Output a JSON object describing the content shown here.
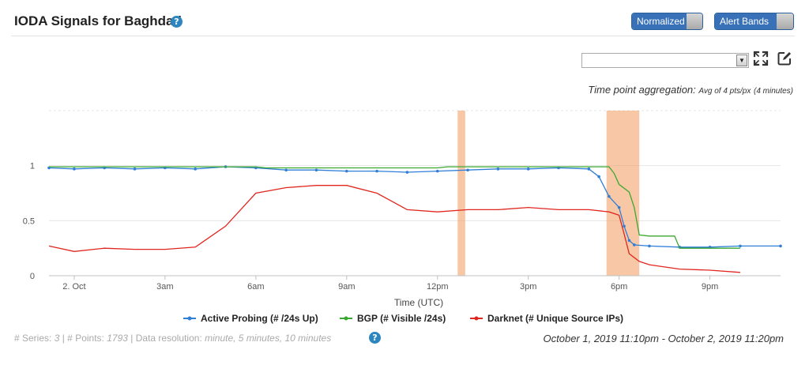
{
  "header": {
    "title": "IODA Signals for Baghdad",
    "help_glyph": "?",
    "toggles": {
      "normalized": "Normalized",
      "alert_bands": "Alert Bands"
    }
  },
  "controls": {
    "select_value": "",
    "select_arrow": "▼",
    "aggregation_label": "Time point aggregation:",
    "aggregation_value": "Avg of 4 pts/px",
    "aggregation_detail": "(4 minutes)"
  },
  "footer": {
    "series_label": "# Series:",
    "series_value": "3",
    "points_label": "| # Points:",
    "points_value": "1793",
    "resolution_label": "| Data resolution:",
    "resolution_value": "minute, 5 minutes, 10 minutes",
    "date_range": "October 1, 2019 11:10pm - October 2, 2019 11:20pm"
  },
  "chart_data": {
    "type": "line",
    "xlabel": "Time (UTC)",
    "ylabel": "",
    "x_range": [
      "2019-10-01T23:10",
      "2019-10-02T23:20"
    ],
    "ylim": [
      0,
      1.5
    ],
    "y_ticks": [
      {
        "value": 0,
        "label": "0"
      },
      {
        "value": 0.5,
        "label": "0.5"
      },
      {
        "value": 1,
        "label": "1"
      }
    ],
    "x_ticks": [
      {
        "time": "2019-10-02T00:00",
        "label": "2. Oct"
      },
      {
        "time": "2019-10-02T03:00",
        "label": "3am"
      },
      {
        "time": "2019-10-02T06:00",
        "label": "6am"
      },
      {
        "time": "2019-10-02T09:00",
        "label": "9am"
      },
      {
        "time": "2019-10-02T12:00",
        "label": "12pm"
      },
      {
        "time": "2019-10-02T15:00",
        "label": "3pm"
      },
      {
        "time": "2019-10-02T18:00",
        "label": "6pm"
      },
      {
        "time": "2019-10-02T21:00",
        "label": "9pm"
      }
    ],
    "grid": true,
    "legend_position": "bottom",
    "alert_bands": [
      {
        "start": "2019-10-02T12:40",
        "end": "2019-10-02T12:55"
      },
      {
        "start": "2019-10-02T17:35",
        "end": "2019-10-02T18:40"
      }
    ],
    "series": [
      {
        "name": "Active Probing (# /24s Up)",
        "color": "#2f7ed8",
        "points": [
          [
            "2019-10-01T23:10",
            0.98
          ],
          [
            "2019-10-02T00:00",
            0.97
          ],
          [
            "2019-10-02T01:00",
            0.98
          ],
          [
            "2019-10-02T02:00",
            0.97
          ],
          [
            "2019-10-02T03:00",
            0.98
          ],
          [
            "2019-10-02T04:00",
            0.97
          ],
          [
            "2019-10-02T05:00",
            0.99
          ],
          [
            "2019-10-02T06:00",
            0.98
          ],
          [
            "2019-10-02T07:00",
            0.96
          ],
          [
            "2019-10-02T08:00",
            0.96
          ],
          [
            "2019-10-02T09:00",
            0.95
          ],
          [
            "2019-10-02T10:00",
            0.95
          ],
          [
            "2019-10-02T11:00",
            0.94
          ],
          [
            "2019-10-02T12:00",
            0.95
          ],
          [
            "2019-10-02T13:00",
            0.96
          ],
          [
            "2019-10-02T14:00",
            0.97
          ],
          [
            "2019-10-02T15:00",
            0.97
          ],
          [
            "2019-10-02T16:00",
            0.98
          ],
          [
            "2019-10-02T17:00",
            0.97
          ],
          [
            "2019-10-02T17:20",
            0.9
          ],
          [
            "2019-10-02T17:40",
            0.72
          ],
          [
            "2019-10-02T18:00",
            0.62
          ],
          [
            "2019-10-02T18:10",
            0.45
          ],
          [
            "2019-10-02T18:20",
            0.32
          ],
          [
            "2019-10-02T18:30",
            0.28
          ],
          [
            "2019-10-02T19:00",
            0.27
          ],
          [
            "2019-10-02T20:00",
            0.26
          ],
          [
            "2019-10-02T21:00",
            0.26
          ],
          [
            "2019-10-02T22:00",
            0.27
          ],
          [
            "2019-10-02T23:20",
            0.27
          ]
        ]
      },
      {
        "name": "BGP (# Visible /24s)",
        "color": "#3aa82f",
        "points": [
          [
            "2019-10-01T23:10",
            0.99
          ],
          [
            "2019-10-02T03:00",
            0.99
          ],
          [
            "2019-10-02T06:00",
            0.99
          ],
          [
            "2019-10-02T06:20",
            0.98
          ],
          [
            "2019-10-02T12:00",
            0.98
          ],
          [
            "2019-10-02T12:20",
            0.99
          ],
          [
            "2019-10-02T17:40",
            0.99
          ],
          [
            "2019-10-02T17:50",
            0.93
          ],
          [
            "2019-10-02T18:00",
            0.83
          ],
          [
            "2019-10-02T18:20",
            0.76
          ],
          [
            "2019-10-02T18:30",
            0.62
          ],
          [
            "2019-10-02T18:40",
            0.37
          ],
          [
            "2019-10-02T19:00",
            0.36
          ],
          [
            "2019-10-02T19:50",
            0.36
          ],
          [
            "2019-10-02T20:00",
            0.25
          ],
          [
            "2019-10-02T22:00",
            0.25
          ]
        ]
      },
      {
        "name": "Darknet (# Unique Source IPs)",
        "color": "#e0261e",
        "points": [
          [
            "2019-10-01T23:10",
            0.27
          ],
          [
            "2019-10-02T00:00",
            0.22
          ],
          [
            "2019-10-02T01:00",
            0.25
          ],
          [
            "2019-10-02T02:00",
            0.24
          ],
          [
            "2019-10-02T03:00",
            0.24
          ],
          [
            "2019-10-02T04:00",
            0.26
          ],
          [
            "2019-10-02T05:00",
            0.45
          ],
          [
            "2019-10-02T06:00",
            0.75
          ],
          [
            "2019-10-02T07:00",
            0.8
          ],
          [
            "2019-10-02T08:00",
            0.82
          ],
          [
            "2019-10-02T09:00",
            0.82
          ],
          [
            "2019-10-02T10:00",
            0.75
          ],
          [
            "2019-10-02T11:00",
            0.6
          ],
          [
            "2019-10-02T12:00",
            0.58
          ],
          [
            "2019-10-02T13:00",
            0.6
          ],
          [
            "2019-10-02T14:00",
            0.6
          ],
          [
            "2019-10-02T15:00",
            0.62
          ],
          [
            "2019-10-02T16:00",
            0.6
          ],
          [
            "2019-10-02T17:00",
            0.6
          ],
          [
            "2019-10-02T17:40",
            0.58
          ],
          [
            "2019-10-02T18:00",
            0.55
          ],
          [
            "2019-10-02T18:10",
            0.38
          ],
          [
            "2019-10-02T18:20",
            0.2
          ],
          [
            "2019-10-02T18:40",
            0.13
          ],
          [
            "2019-10-02T19:00",
            0.1
          ],
          [
            "2019-10-02T20:00",
            0.06
          ],
          [
            "2019-10-02T21:00",
            0.05
          ],
          [
            "2019-10-02T22:00",
            0.03
          ]
        ]
      }
    ]
  }
}
